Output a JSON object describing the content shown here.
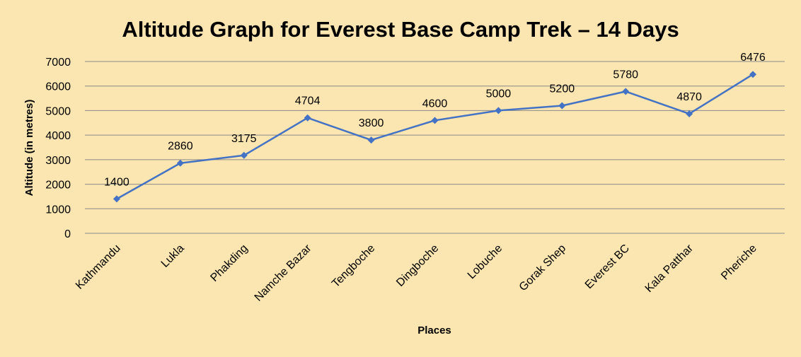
{
  "chart_data": {
    "type": "line",
    "title": "Altitude Graph for Everest Base Camp Trek – 14 Days",
    "xlabel": "Places",
    "ylabel": "Altitude (in metres)",
    "categories": [
      "Kathmandu",
      "Lukla",
      "Phakding",
      "Namche Bazar",
      "Tengboche",
      "Dingboche",
      "Lobuche",
      "Gorak Shep",
      "Everest BC",
      "Kala Patthar",
      "Pheriche"
    ],
    "series": [
      {
        "values": [
          1400,
          2860,
          3175,
          4704,
          3800,
          4600,
          5000,
          5200,
          5780,
          4870,
          6476
        ]
      }
    ],
    "data_labels": [
      "1400",
      "2860",
      "3175",
      "4704",
      "3800",
      "4600",
      "5000",
      "5200",
      "5780",
      "4870",
      "6476"
    ],
    "ylim": [
      0,
      7000
    ],
    "y_ticks": [
      "0",
      "1000",
      "2000",
      "3000",
      "4000",
      "5000",
      "6000",
      "7000"
    ],
    "grid": true,
    "legend": "none",
    "colors": {
      "line": "#4472c4",
      "grid": "#8a8a8a",
      "background": "#fbe5b0"
    }
  }
}
